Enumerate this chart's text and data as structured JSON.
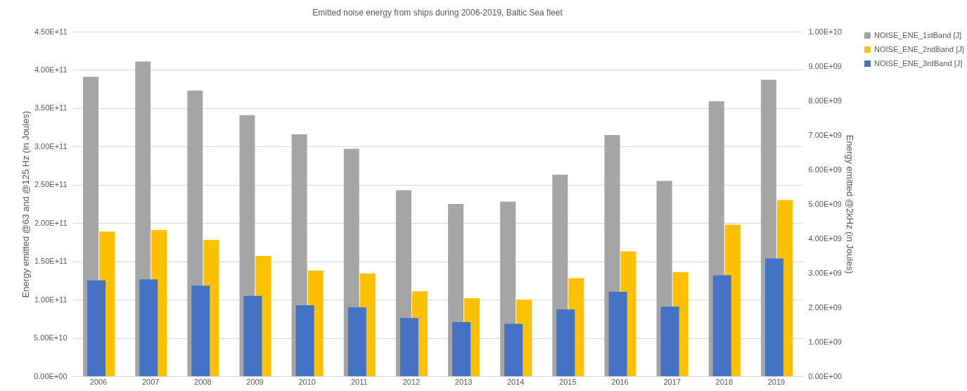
{
  "chart_data": {
    "type": "bar",
    "title": "Emitted noise energy from ships during 2006-2019, Baltic Sea fleet",
    "ylabel": "Energy emitted @63 and @125 Hz (in Joules)",
    "y2label": "Energy emitted @2kHz (in Joules)",
    "categories": [
      "2006",
      "2007",
      "2008",
      "2009",
      "2010",
      "2011",
      "2012",
      "2013",
      "2014",
      "2015",
      "2016",
      "2017",
      "2018",
      "2019"
    ],
    "series": [
      {
        "name": "NOISE_ENE_1stBand [J]",
        "color": "#a5a5a5",
        "values": [
          391000000000.0,
          411000000000.0,
          373000000000.0,
          341000000000.0,
          316000000000.0,
          297000000000.0,
          243000000000.0,
          225000000000.0,
          228000000000.0,
          263000000000.0,
          315000000000.0,
          255000000000.0,
          359000000000.0,
          387000000000.0
        ]
      },
      {
        "name": "NOISE_ENE_2ndBand [J]",
        "color": "#ffc000",
        "values": [
          189000000000.0,
          191000000000.0,
          178000000000.0,
          157000000000.0,
          138000000000.0,
          134000000000.0,
          111000000000.0,
          102000000000.0,
          100000000000.0,
          128000000000.0,
          163000000000.0,
          136000000000.0,
          198000000000.0,
          230000000000.0
        ]
      },
      {
        "name": "NOISE_ENE_3rdBand [J]",
        "color": "#4472c4",
        "axis": "y2",
        "values": [
          2780000000.0,
          2810000000.0,
          2630000000.0,
          2330000000.0,
          2060000000.0,
          2000000000.0,
          1690000000.0,
          1570000000.0,
          1520000000.0,
          1940000000.0,
          2450000000.0,
          2020000000.0,
          2930000000.0,
          3420000000.0
        ]
      }
    ],
    "ylim": [
      0,
      450000000000.0
    ],
    "yticks": [
      {
        "value": 0,
        "label": "0.00E+00"
      },
      {
        "value": 50000000000.0,
        "label": "5.00E+10"
      },
      {
        "value": 100000000000.0,
        "label": "1.00E+11"
      },
      {
        "value": 150000000000.0,
        "label": "1.50E+11"
      },
      {
        "value": 200000000000.0,
        "label": "2.00E+11"
      },
      {
        "value": 250000000000.0,
        "label": "2.50E+11"
      },
      {
        "value": 300000000000.0,
        "label": "3.00E+11"
      },
      {
        "value": 350000000000.0,
        "label": "3.50E+11"
      },
      {
        "value": 400000000000.0,
        "label": "4.00E+11"
      },
      {
        "value": 450000000000.0,
        "label": "4.50E+11"
      }
    ],
    "y2lim": [
      0,
      10000000000.0
    ],
    "y2ticks": [
      {
        "value": 0,
        "label": "0.00E+00"
      },
      {
        "value": 1000000000.0,
        "label": "1.00E+09"
      },
      {
        "value": 2000000000.0,
        "label": "2.00E+09"
      },
      {
        "value": 3000000000.0,
        "label": "3.00E+09"
      },
      {
        "value": 4000000000.0,
        "label": "4.00E+09"
      },
      {
        "value": 5000000000.0,
        "label": "5.00E+09"
      },
      {
        "value": 6000000000.0,
        "label": "6.00E+09"
      },
      {
        "value": 7000000000.0,
        "label": "7.00E+09"
      },
      {
        "value": 8000000000.0,
        "label": "8.00E+09"
      },
      {
        "value": 9000000000.0,
        "label": "9.00E+09"
      },
      {
        "value": 10000000000.0,
        "label": "1.00E+10"
      }
    ],
    "grid": "y",
    "legend": "right"
  }
}
